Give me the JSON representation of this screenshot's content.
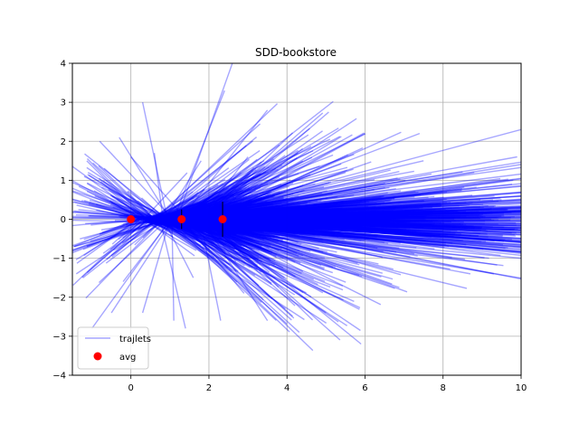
{
  "chart_data": {
    "type": "line",
    "title": "SDD-bookstore",
    "xlabel": "",
    "ylabel": "",
    "xlim": [
      -1.5,
      10
    ],
    "ylim": [
      -4,
      4
    ],
    "x_ticks": [
      0,
      2,
      4,
      6,
      8,
      10
    ],
    "y_ticks": [
      -4,
      -3,
      -2,
      -1,
      0,
      1,
      2,
      3,
      4
    ],
    "grid": true,
    "legend_position": "lower-left",
    "series": [
      {
        "name": "trajlets",
        "kind": "line",
        "color": "#0000ff",
        "alpha": 0.35,
        "description_count_estimate": 2000,
        "sample_endpoints": [
          [
            10,
            2.3
          ],
          [
            9.9,
            1.6
          ],
          [
            9.8,
            1.0
          ],
          [
            9.3,
            -1.4
          ],
          [
            8.7,
            -1.4
          ],
          [
            8.8,
            1.2
          ],
          [
            8.1,
            0.7
          ],
          [
            7.5,
            1.5
          ],
          [
            7.4,
            2.2
          ],
          [
            7.1,
            0.3
          ],
          [
            6.0,
            2.2
          ],
          [
            5.9,
            -3.2
          ],
          [
            5.5,
            1.2
          ],
          [
            5.0,
            -2.4
          ],
          [
            4.3,
            0.6
          ],
          [
            3.5,
            2.8
          ],
          [
            3.5,
            -2.6
          ],
          [
            3.0,
            1.6
          ],
          [
            2.6,
            4.0
          ],
          [
            2.4,
            3.3
          ],
          [
            2.3,
            -2.6
          ],
          [
            1.8,
            1.5
          ],
          [
            1.6,
            -1.5
          ],
          [
            1.4,
            -2.8
          ],
          [
            1.1,
            -2.6
          ],
          [
            0.6,
            1.7
          ],
          [
            0.3,
            3.0
          ],
          [
            0.3,
            -2.4
          ],
          [
            0.0,
            1.6
          ],
          [
            -0.3,
            2.1
          ],
          [
            -0.8,
            2.0
          ],
          [
            -1.1,
            1.2
          ],
          [
            -1.2,
            1.1
          ],
          [
            -1.5,
            0.5
          ],
          [
            -0.2,
            -1.6
          ],
          [
            -0.5,
            -2.4
          ],
          [
            -1.0,
            -2.8
          ],
          [
            -1.4,
            -1.4
          ],
          [
            1.8,
            0.4
          ],
          [
            6.5,
            -0.6
          ],
          [
            10,
            0.3
          ],
          [
            10,
            -0.4
          ],
          [
            10,
            0.1
          ],
          [
            10,
            -0.1
          ],
          [
            9.5,
            0.5
          ],
          [
            9.0,
            -0.2
          ]
        ]
      },
      {
        "name": "avg",
        "kind": "scatter",
        "color": "#ff0000",
        "points": [
          [
            0.0,
            0.0
          ],
          [
            1.3,
            0.0
          ],
          [
            2.35,
            0.0
          ]
        ],
        "error_bars_y": [
          0.05,
          0.25,
          0.45
        ]
      }
    ]
  }
}
